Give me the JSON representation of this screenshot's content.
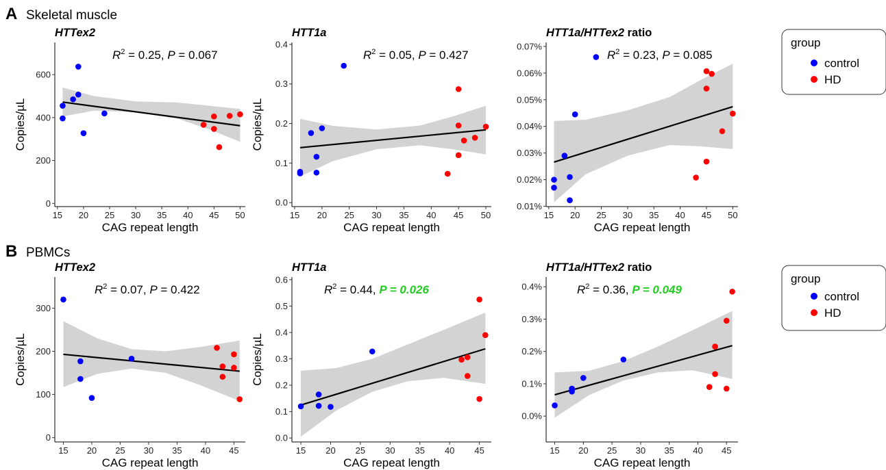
{
  "rows": [
    {
      "letter": "A",
      "name": "Skeletal muscle"
    },
    {
      "letter": "B",
      "name": "PBMCs"
    }
  ],
  "legend": {
    "title": "group",
    "items": [
      {
        "label": "control",
        "color": "#0000ff"
      },
      {
        "label": "HD",
        "color": "#ff0000"
      }
    ]
  },
  "colors": {
    "control": "#0000ff",
    "HD": "#ff0000",
    "significant": "#22cc22",
    "band": "#d3d3d3",
    "fit": "#000000"
  },
  "chart_data": [
    {
      "type": "scatter",
      "row": 0,
      "col": 0,
      "title": "HTTex2",
      "ylabel": "Copies/µL",
      "xlabel": "CAG repeat length",
      "stat_r2": "0.25",
      "stat_p": "0.067",
      "significant": false,
      "xlim": [
        14.5,
        51
      ],
      "ylim": [
        -15,
        750
      ],
      "xticks": [
        15,
        20,
        25,
        30,
        35,
        40,
        45,
        50
      ],
      "xticklabels": [
        "15",
        "20",
        "25",
        "30",
        "35",
        "40",
        "45",
        "50"
      ],
      "yticks": [
        0,
        200,
        400,
        600
      ],
      "yticklabels": [
        "0",
        "200",
        "400",
        "600"
      ],
      "fit": [
        [
          16,
          472
        ],
        [
          50,
          362
        ]
      ],
      "band_upper": [
        [
          16,
          540
        ],
        [
          22,
          500
        ],
        [
          30,
          475
        ],
        [
          38,
          470
        ],
        [
          44,
          455
        ],
        [
          50,
          440
        ]
      ],
      "band_lower": [
        [
          16,
          405
        ],
        [
          22,
          432
        ],
        [
          30,
          425
        ],
        [
          38,
          395
        ],
        [
          44,
          345
        ],
        [
          50,
          287
        ]
      ],
      "control": [
        [
          16,
          455
        ],
        [
          16,
          396
        ],
        [
          18,
          485
        ],
        [
          19,
          637
        ],
        [
          19,
          507
        ],
        [
          20,
          327
        ],
        [
          24,
          419
        ]
      ],
      "HD": [
        [
          43,
          366
        ],
        [
          45,
          405
        ],
        [
          45,
          347
        ],
        [
          46,
          262
        ],
        [
          48,
          408
        ],
        [
          50,
          415
        ]
      ]
    },
    {
      "type": "scatter",
      "row": 0,
      "col": 1,
      "title": "HTT1a",
      "ylabel": "Copies/µL",
      "xlabel": "CAG repeat length",
      "stat_r2": "0.05",
      "stat_p": "0.427",
      "significant": false,
      "xlim": [
        14.5,
        51
      ],
      "ylim": [
        -0.01,
        0.405
      ],
      "xticks": [
        15,
        20,
        25,
        30,
        35,
        40,
        45,
        50
      ],
      "xticklabels": [
        "15",
        "20",
        "25",
        "30",
        "35",
        "40",
        "45",
        "50"
      ],
      "yticks": [
        0,
        0.1,
        0.2,
        0.3,
        0.4
      ],
      "yticklabels": [
        "0.0",
        "0.1",
        "0.2",
        "0.3",
        "0.4"
      ],
      "fit": [
        [
          16,
          0.139
        ],
        [
          50,
          0.184
        ]
      ],
      "band_upper": [
        [
          16,
          0.212
        ],
        [
          22,
          0.194
        ],
        [
          30,
          0.185
        ],
        [
          38,
          0.195
        ],
        [
          44,
          0.218
        ],
        [
          50,
          0.245
        ]
      ],
      "band_lower": [
        [
          16,
          0.066
        ],
        [
          22,
          0.105
        ],
        [
          30,
          0.135
        ],
        [
          38,
          0.145
        ],
        [
          44,
          0.135
        ],
        [
          50,
          0.122
        ]
      ],
      "control": [
        [
          16,
          0.078
        ],
        [
          16,
          0.074
        ],
        [
          18,
          0.176
        ],
        [
          19,
          0.116
        ],
        [
          19,
          0.076
        ],
        [
          20,
          0.188
        ],
        [
          24,
          0.346
        ]
      ],
      "HD": [
        [
          43,
          0.073
        ],
        [
          45,
          0.287
        ],
        [
          45,
          0.195
        ],
        [
          45,
          0.12
        ],
        [
          46,
          0.157
        ],
        [
          48,
          0.164
        ],
        [
          50,
          0.192
        ]
      ]
    },
    {
      "type": "scatter",
      "row": 0,
      "col": 2,
      "title": "HTT1a/HTTex2 ratio",
      "ylabel": "",
      "xlabel": "CAG repeat length",
      "stat_r2": "0.23",
      "stat_p": "0.085",
      "significant": false,
      "xlim": [
        14.5,
        51
      ],
      "ylim": [
        0.0099,
        0.0715
      ],
      "xticks": [
        15,
        20,
        25,
        30,
        35,
        40,
        45,
        50
      ],
      "xticklabels": [
        "15",
        "20",
        "25",
        "30",
        "35",
        "40",
        "45",
        "50"
      ],
      "yticks": [
        0.01,
        0.02,
        0.03,
        0.04,
        0.05,
        0.06,
        0.07
      ],
      "yticklabels": [
        "0.01%",
        "0.02%",
        "0.03%",
        "0.04%",
        "0.05%",
        "0.06%",
        "0.07%"
      ],
      "fit": [
        [
          16,
          0.0266
        ],
        [
          50,
          0.0474
        ]
      ],
      "band_upper": [
        [
          16,
          0.042
        ],
        [
          22,
          0.0425
        ],
        [
          30,
          0.046
        ],
        [
          38,
          0.051
        ],
        [
          44,
          0.0575
        ],
        [
          50,
          0.0635
        ]
      ],
      "band_lower": [
        [
          16,
          0.0115
        ],
        [
          22,
          0.022
        ],
        [
          30,
          0.029
        ],
        [
          38,
          0.033
        ],
        [
          44,
          0.0325
        ],
        [
          50,
          0.0315
        ]
      ],
      "control": [
        [
          16,
          0.02
        ],
        [
          16,
          0.017
        ],
        [
          18,
          0.029
        ],
        [
          19,
          0.021
        ],
        [
          19,
          0.0123
        ],
        [
          20,
          0.0445
        ],
        [
          24,
          0.066
        ]
      ],
      "HD": [
        [
          43,
          0.0208
        ],
        [
          45,
          0.0607
        ],
        [
          45,
          0.0542
        ],
        [
          45,
          0.0268
        ],
        [
          46,
          0.0597
        ],
        [
          48,
          0.0382
        ],
        [
          50,
          0.0448
        ]
      ]
    },
    {
      "type": "scatter",
      "row": 1,
      "col": 0,
      "title": "HTTex2",
      "ylabel": "Copies/µL",
      "xlabel": "CAG repeat length",
      "stat_r2": "0.07",
      "stat_p": "0.422",
      "significant": false,
      "xlim": [
        13.5,
        47
      ],
      "ylim": [
        -10,
        372
      ],
      "xticks": [
        15,
        20,
        25,
        30,
        35,
        40,
        45
      ],
      "xticklabels": [
        "15",
        "20",
        "25",
        "30",
        "35",
        "40",
        "45"
      ],
      "yticks": [
        0,
        100,
        200,
        300
      ],
      "yticklabels": [
        "0",
        "100",
        "200",
        "300"
      ],
      "fit": [
        [
          15,
          193
        ],
        [
          46,
          154
        ]
      ],
      "band_upper": [
        [
          15,
          270
        ],
        [
          21,
          230
        ],
        [
          27,
          205
        ],
        [
          33,
          200
        ],
        [
          39,
          210
        ],
        [
          46,
          225
        ]
      ],
      "band_lower": [
        [
          15,
          117
        ],
        [
          21,
          148
        ],
        [
          27,
          160
        ],
        [
          33,
          150
        ],
        [
          39,
          122
        ],
        [
          46,
          85
        ]
      ],
      "control": [
        [
          15,
          320
        ],
        [
          18,
          177
        ],
        [
          18,
          136
        ],
        [
          20,
          92
        ],
        [
          27,
          183
        ]
      ],
      "HD": [
        [
          42,
          208
        ],
        [
          43,
          165
        ],
        [
          43,
          141
        ],
        [
          45,
          193
        ],
        [
          45,
          162
        ],
        [
          46,
          89
        ]
      ]
    },
    {
      "type": "scatter",
      "row": 1,
      "col": 1,
      "title": "HTT1a",
      "ylabel": "Copies/µL",
      "xlabel": "CAG repeat length",
      "stat_r2": "0.44",
      "stat_p": "0.026",
      "significant": true,
      "xlim": [
        13.5,
        47
      ],
      "ylim": [
        -0.015,
        0.61
      ],
      "xticks": [
        15,
        20,
        25,
        30,
        35,
        40,
        45
      ],
      "xticklabels": [
        "15",
        "20",
        "25",
        "30",
        "35",
        "40",
        "45"
      ],
      "yticks": [
        0,
        0.1,
        0.2,
        0.3,
        0.4,
        0.5,
        0.6
      ],
      "yticklabels": [
        "0.0",
        "0.1",
        "0.2",
        "0.3",
        "0.4",
        "0.5",
        "0.6"
      ],
      "fit": [
        [
          15,
          0.125
        ],
        [
          46,
          0.338
        ]
      ],
      "band_upper": [
        [
          15,
          0.255
        ],
        [
          21,
          0.265
        ],
        [
          27,
          0.3
        ],
        [
          33,
          0.355
        ],
        [
          39,
          0.41
        ],
        [
          46,
          0.475
        ]
      ],
      "band_lower": [
        [
          15,
          0.005
        ],
        [
          21,
          0.105
        ],
        [
          27,
          0.175
        ],
        [
          33,
          0.215
        ],
        [
          39,
          0.228
        ],
        [
          46,
          0.205
        ]
      ],
      "control": [
        [
          15,
          0.12
        ],
        [
          18,
          0.165
        ],
        [
          18,
          0.122
        ],
        [
          20,
          0.118
        ],
        [
          27,
          0.328
        ]
      ],
      "HD": [
        [
          42,
          0.297
        ],
        [
          43,
          0.306
        ],
        [
          43,
          0.235
        ],
        [
          45,
          0.525
        ],
        [
          45,
          0.148
        ],
        [
          46,
          0.39
        ]
      ]
    },
    {
      "type": "scatter",
      "row": 1,
      "col": 2,
      "title": "HTT1a/HTTex2 ratio",
      "ylabel": "",
      "xlabel": "CAG repeat length",
      "stat_r2": "0.36",
      "stat_p": "0.049",
      "significant": true,
      "xlim": [
        13.5,
        47
      ],
      "ylim": [
        -0.0008,
        0.0043
      ],
      "xticks": [
        15,
        20,
        25,
        30,
        35,
        40,
        45
      ],
      "xticklabels": [
        "15",
        "20",
        "25",
        "30",
        "35",
        "40",
        "45"
      ],
      "yticks": [
        0,
        0.001,
        0.002,
        0.003,
        0.004
      ],
      "yticklabels": [
        "0.0%",
        "0.1%",
        "0.2%",
        "0.3%",
        "0.4%"
      ],
      "fit": [
        [
          15,
          0.00066
        ],
        [
          46,
          0.00218
        ]
      ],
      "band_upper": [
        [
          15,
          0.00135
        ],
        [
          21,
          0.0014
        ],
        [
          27,
          0.0017
        ],
        [
          33,
          0.00215
        ],
        [
          39,
          0.00265
        ],
        [
          46,
          0.00325
        ]
      ],
      "band_lower": [
        [
          15,
          -5e-05
        ],
        [
          21,
          0.00065
        ],
        [
          27,
          0.0011
        ],
        [
          33,
          0.00135
        ],
        [
          39,
          0.00142
        ],
        [
          46,
          0.00115
        ]
      ],
      "control": [
        [
          15,
          0.00033
        ],
        [
          18,
          0.00085
        ],
        [
          18,
          0.0008
        ],
        [
          18,
          0.00076
        ],
        [
          20,
          0.00118
        ],
        [
          27,
          0.00175
        ]
      ],
      "HD": [
        [
          42,
          0.0009
        ],
        [
          43,
          0.00215
        ],
        [
          43,
          0.0013
        ],
        [
          45,
          0.00295
        ],
        [
          45,
          0.00085
        ],
        [
          46,
          0.00385
        ]
      ]
    }
  ]
}
